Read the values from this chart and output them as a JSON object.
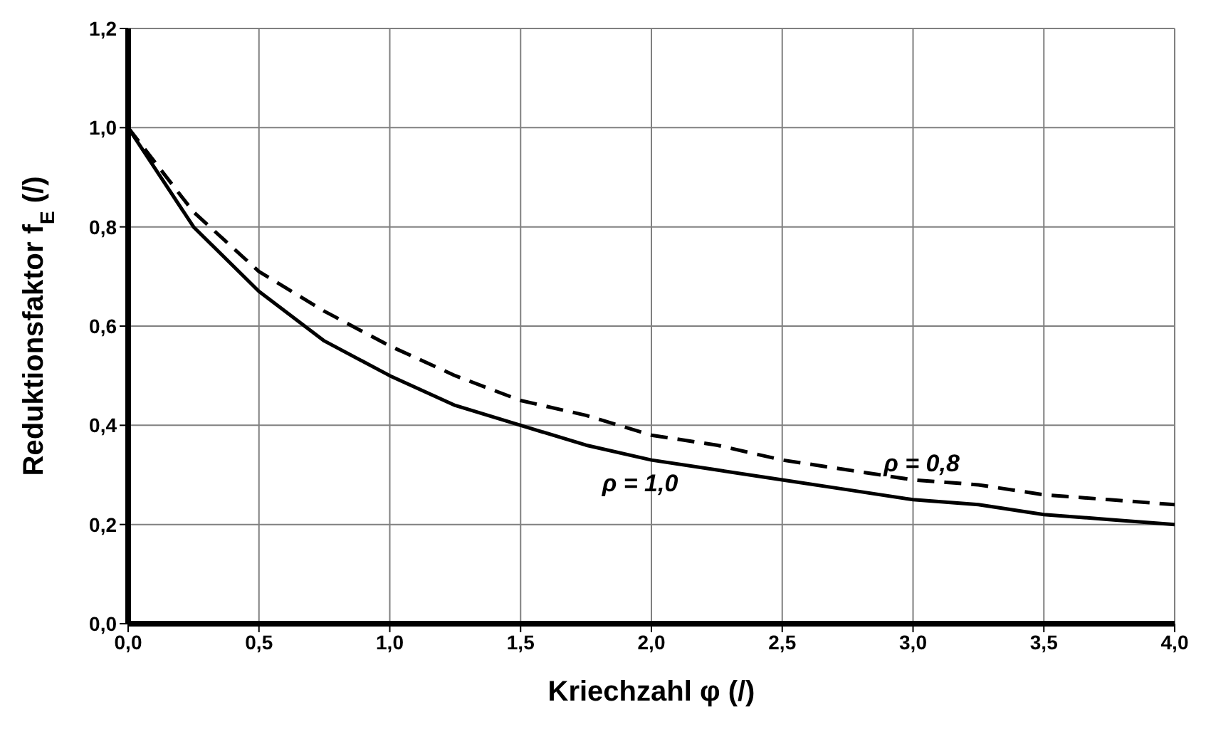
{
  "chart_data": {
    "type": "line",
    "xlabel": "Kriechzahl φ (/)",
    "ylabel": "Reduktionsfaktor f$_{E}$ (/)",
    "x": [
      0,
      0.25,
      0.5,
      0.75,
      1,
      1.25,
      1.5,
      1.75,
      2,
      2.25,
      2.5,
      2.75,
      3,
      3.25,
      3.5,
      3.75,
      4
    ],
    "series": [
      {
        "color": "#000000",
        "line_style": "solid",
        "values": [
          1,
          0.8,
          0.67,
          0.57,
          0.5,
          0.44,
          0.4,
          0.36,
          0.33,
          0.31,
          0.29,
          0.27,
          0.25,
          0.24,
          0.22,
          0.21,
          0.2
        ]
      },
      {
        "color": "#000000",
        "line_style": "dashed",
        "values": [
          1,
          0.83,
          0.71,
          0.63,
          0.56,
          0.5,
          0.45,
          0.42,
          0.38,
          0.36,
          0.33,
          0.31,
          0.29,
          0.28,
          0.26,
          0.25,
          0.24
        ]
      }
    ],
    "xlim": [
      0,
      4
    ],
    "xticks": [
      {
        "value": 0,
        "label": "0,0"
      },
      {
        "value": 0.5,
        "label": "0,5"
      },
      {
        "value": 1,
        "label": "1,0"
      },
      {
        "value": 1.5,
        "label": "1,5"
      },
      {
        "value": 2,
        "label": "2,0"
      },
      {
        "value": 2.5,
        "label": "2,5"
      },
      {
        "value": 3,
        "label": "3,0"
      },
      {
        "value": 3.5,
        "label": "3,5"
      },
      {
        "value": 4,
        "label": "4,0"
      }
    ],
    "ylim": [
      0,
      1.2
    ],
    "yticks": [
      {
        "value": 0,
        "label": "0,0"
      },
      {
        "value": 0.2,
        "label": "0,2"
      },
      {
        "value": 0.4,
        "label": "0,4"
      },
      {
        "value": 0.6,
        "label": "0,6"
      },
      {
        "value": 0.8,
        "label": "0,8"
      },
      {
        "value": 1,
        "label": "1,0"
      },
      {
        "value": 1.2,
        "label": "1,2"
      }
    ],
    "annotations": [
      "ρ = 1,0",
      "ρ = 0,8"
    ],
    "grid": true,
    "marker": "none"
  }
}
